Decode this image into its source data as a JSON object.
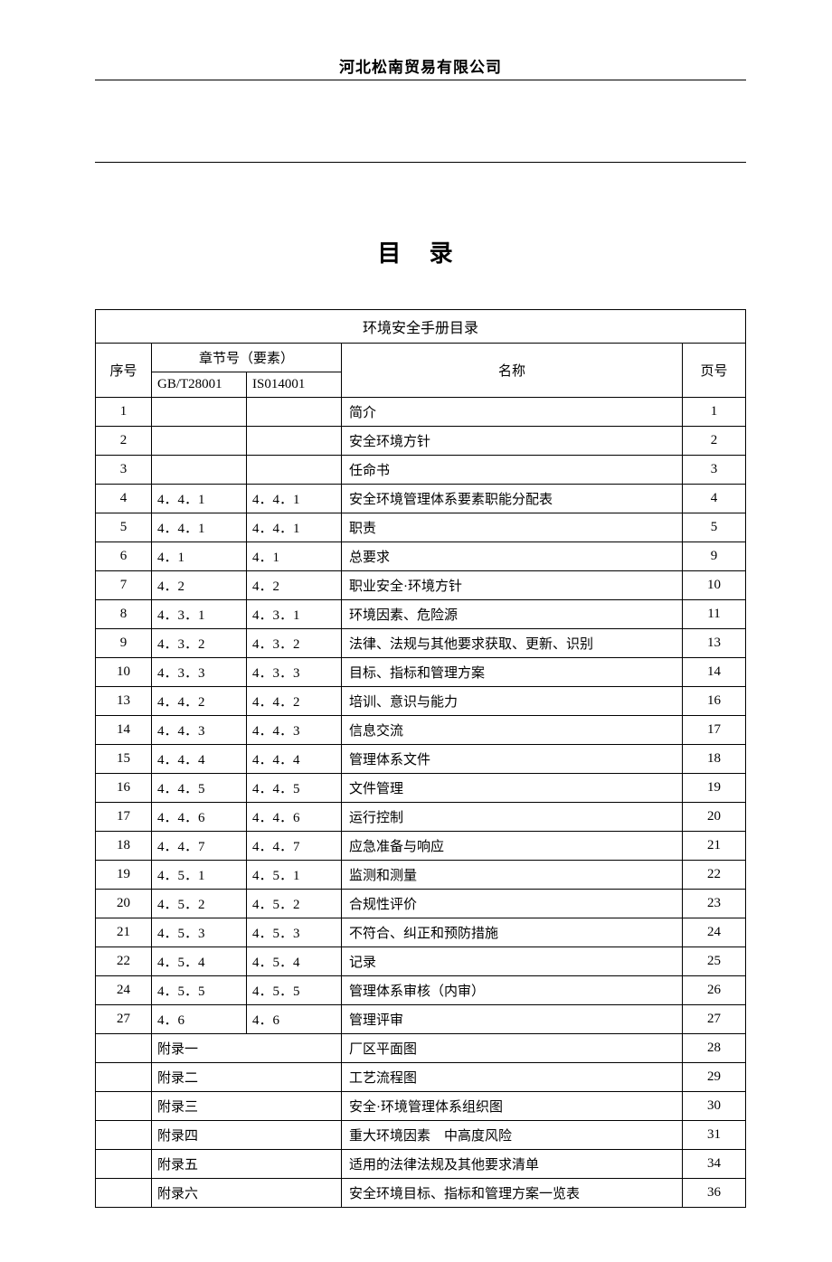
{
  "company_name": "河北松南贸易有限公司",
  "doc_title": "目 录",
  "table_title": "环境安全手册目录",
  "headers": {
    "seq": "序号",
    "chapter": "章节号（要素）",
    "gb": "GB/T28001",
    "iso": "IS014001",
    "name": "名称",
    "page": "页号"
  },
  "rows": [
    {
      "seq": "1",
      "gb": "",
      "iso": "",
      "name": "简介",
      "page": "1"
    },
    {
      "seq": "2",
      "gb": "",
      "iso": "",
      "name": "安全环境方针",
      "page": "2"
    },
    {
      "seq": "3",
      "gb": "",
      "iso": "",
      "name": "任命书",
      "page": "3"
    },
    {
      "seq": "4",
      "gb": "4．4．1",
      "iso": "4．4．1",
      "name": "安全环境管理体系要素职能分配表",
      "page": "4"
    },
    {
      "seq": "5",
      "gb": "4．4．1",
      "iso": "4．4．1",
      "name": "职责",
      "page": "5"
    },
    {
      "seq": "6",
      "gb": "4．1",
      "iso": "4．1",
      "name": "总要求",
      "page": "9"
    },
    {
      "seq": "7",
      "gb": "4．2",
      "iso": "4．2",
      "name": "职业安全·环境方针",
      "page": "10"
    },
    {
      "seq": "8",
      "gb": "4．3．1",
      "iso": "4．3．1",
      "name": "环境因素、危险源",
      "page": "11"
    },
    {
      "seq": "9",
      "gb": "4．3．2",
      "iso": "4．3．2",
      "name": "法律、法规与其他要求获取、更新、识别",
      "page": "13"
    },
    {
      "seq": "10",
      "gb": "4．3．3",
      "iso": "4．3．3",
      "name": "目标、指标和管理方案",
      "page": "14"
    },
    {
      "seq": "13",
      "gb": "4．4．2",
      "iso": "4．4．2",
      "name": "培训、意识与能力",
      "page": "16"
    },
    {
      "seq": "14",
      "gb": "4．4．3",
      "iso": "4．4．3",
      "name": "信息交流",
      "page": "17"
    },
    {
      "seq": "15",
      "gb": "4．4．4",
      "iso": "4．4．4",
      "name": "管理体系文件",
      "page": "18"
    },
    {
      "seq": "16",
      "gb": "4．4．5",
      "iso": "4．4．5",
      "name": "文件管理",
      "page": "19"
    },
    {
      "seq": "17",
      "gb": "4．4．6",
      "iso": "4．4．6",
      "name": "运行控制",
      "page": "20"
    },
    {
      "seq": "18",
      "gb": "4．4．7",
      "iso": "4．4．7",
      "name": "应急准备与响应",
      "page": "21"
    },
    {
      "seq": "19",
      "gb": "4．5．1",
      "iso": "4．5．1",
      "name": "监测和测量",
      "page": "22"
    },
    {
      "seq": "20",
      "gb": "4．5．2",
      "iso": "4．5．2",
      "name": "合规性评价",
      "page": "23"
    },
    {
      "seq": "21",
      "gb": "4．5．3",
      "iso": "4．5．3",
      "name": "不符合、纠正和预防措施",
      "page": "24"
    },
    {
      "seq": "22",
      "gb": "4．5．4",
      "iso": "4．5．4",
      "name": "记录",
      "page": "25"
    },
    {
      "seq": "24",
      "gb": "4．5．5",
      "iso": "4．5．5",
      "name": "管理体系审核（内审）",
      "page": "26"
    },
    {
      "seq": "27",
      "gb": "4．6",
      "iso": "4．6",
      "name": "管理评审",
      "page": "27"
    }
  ],
  "appendix_rows": [
    {
      "label": "附录一",
      "name": "厂区平面图",
      "page": "28"
    },
    {
      "label": "附录二",
      "name": "工艺流程图",
      "page": "29"
    },
    {
      "label": "附录三",
      "name": "安全·环境管理体系组织图",
      "page": "30"
    },
    {
      "label": "附录四",
      "name": "重大环境因素　中高度风险",
      "page": "31"
    },
    {
      "label": "附录五",
      "name": "适用的法律法规及其他要求清单",
      "page": "34"
    },
    {
      "label": "附录六",
      "name": "安全环境目标、指标和管理方案一览表",
      "page": "36"
    }
  ],
  "style": {
    "background_color": "#ffffff",
    "text_color": "#000000",
    "border_color": "#000000",
    "font_family": "SimSun",
    "body_fontsize": 15,
    "title_fontsize": 26
  }
}
